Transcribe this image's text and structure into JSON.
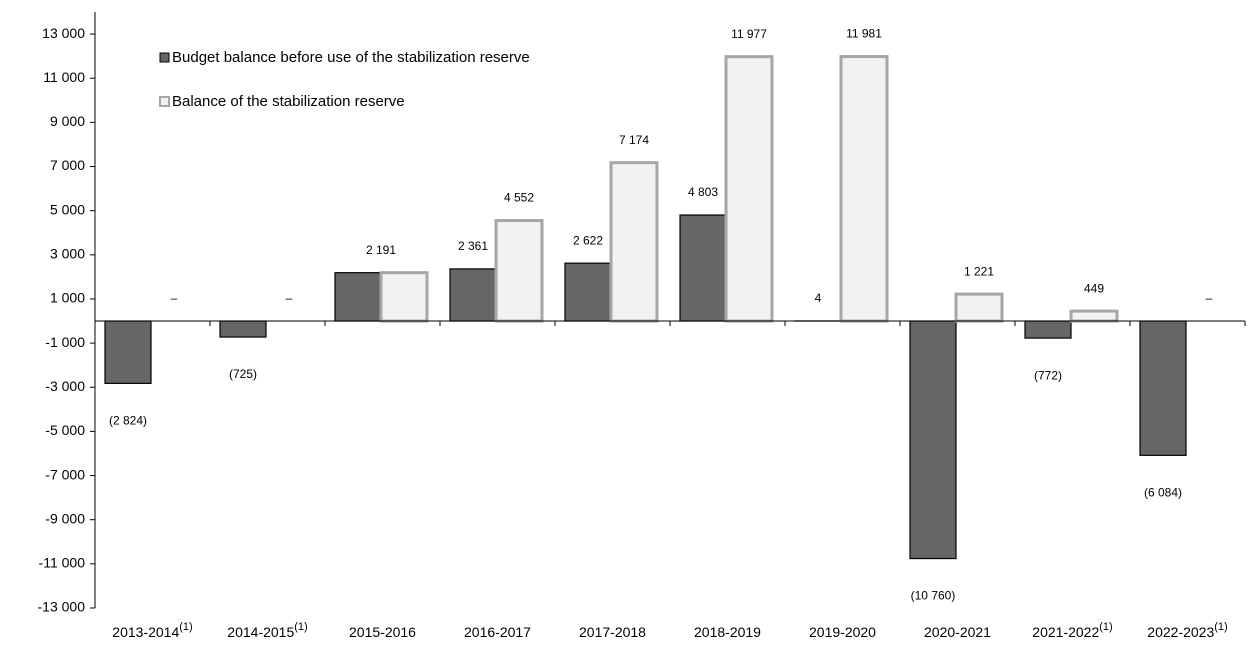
{
  "chart_data": {
    "type": "bar",
    "categories": [
      "2013-2014",
      "2014-2015",
      "2015-2016",
      "2016-2017",
      "2017-2018",
      "2018-2019",
      "2019-2020",
      "2020-2021",
      "2021-2022",
      "2022-2023"
    ],
    "category_notes": [
      "(1)",
      "(1)",
      null,
      null,
      null,
      null,
      null,
      null,
      "(1)",
      "(1)"
    ],
    "series": [
      {
        "name": "Budget balance before use of the stabilization reserve",
        "color": "#666666",
        "values": [
          -2824,
          -725,
          2191,
          2361,
          2622,
          4803,
          4,
          -10760,
          -772,
          -6084
        ],
        "value_labels": [
          "(2 824)",
          "(725)",
          "2 191",
          "2 361",
          "2 622",
          "4 803",
          "4",
          "(10 760)",
          "(772)",
          "(6 084)"
        ]
      },
      {
        "name": "Balance of the stabilization reserve",
        "color": "#f2f2f2",
        "values": [
          0,
          0,
          2191,
          4552,
          7174,
          11977,
          11981,
          1221,
          449,
          0
        ],
        "value_labels": [
          "–",
          "–",
          null,
          "4 552",
          "7 174",
          "11 977",
          "11 981",
          "1 221",
          "449",
          "–"
        ]
      }
    ],
    "ylim": [
      -13000,
      14000
    ],
    "yticks": [
      {
        "value": -13000,
        "label": "-13 000"
      },
      {
        "value": -11000,
        "label": "-11 000"
      },
      {
        "value": -9000,
        "label": "-9 000"
      },
      {
        "value": -7000,
        "label": "-7 000"
      },
      {
        "value": -5000,
        "label": "-5 000"
      },
      {
        "value": -3000,
        "label": "-3 000"
      },
      {
        "value": -1000,
        "label": "-1 000"
      },
      {
        "value": 1000,
        "label": "1 000"
      },
      {
        "value": 3000,
        "label": "3 000"
      },
      {
        "value": 5000,
        "label": "5 000"
      },
      {
        "value": 7000,
        "label": "7 000"
      },
      {
        "value": 9000,
        "label": "9 000"
      },
      {
        "value": 11000,
        "label": "11 000"
      },
      {
        "value": 13000,
        "label": "13 000"
      }
    ],
    "grid": false,
    "legend": "upper left"
  }
}
